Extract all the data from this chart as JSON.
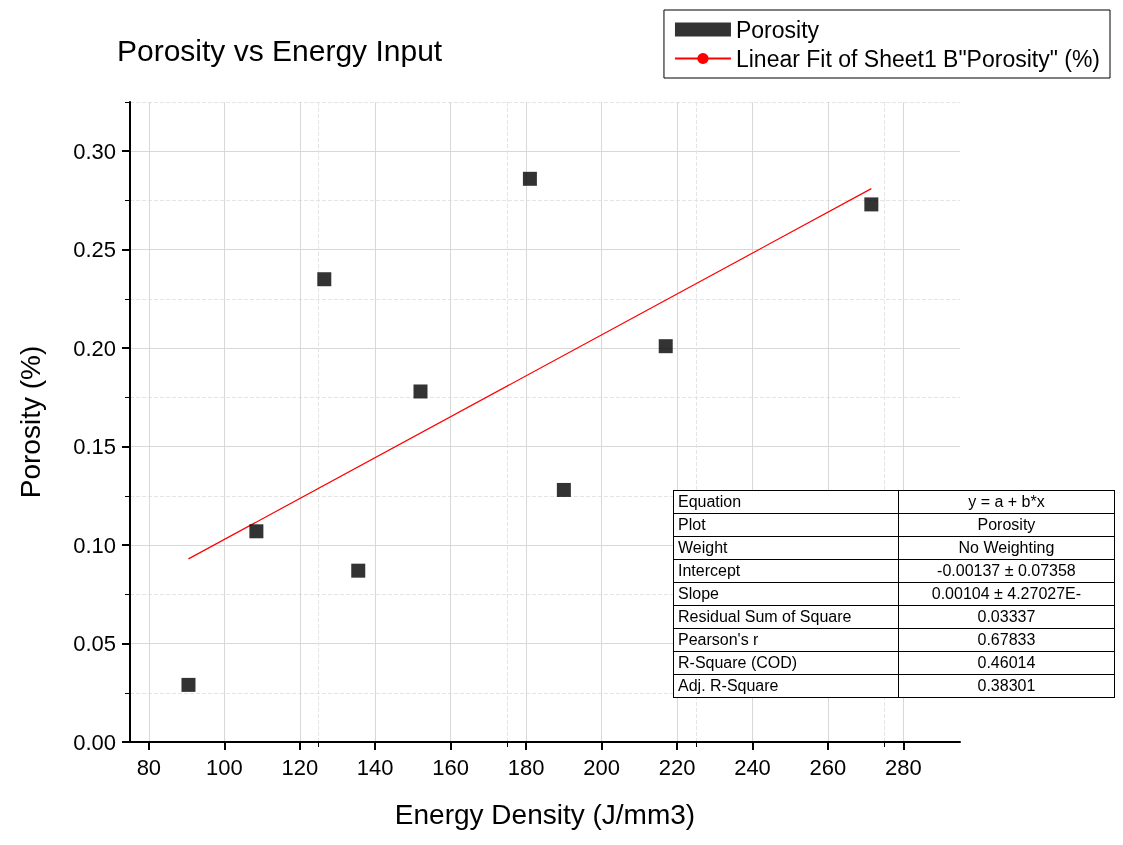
{
  "chart_data": {
    "type": "scatter",
    "title": "Porosity vs Energy Input",
    "xlabel": "Energy Density (J/mm3)",
    "ylabel": "Porosity (%)",
    "x": [
      90.5,
      108.5,
      126.5,
      135.5,
      152,
      181,
      190,
      217,
      271.5
    ],
    "series": [
      {
        "name": "Porosity",
        "color": "#000000",
        "marker": "square",
        "values": [
          0.029,
          0.107,
          0.235,
          0.087,
          0.178,
          0.286,
          0.128,
          0.201,
          0.273
        ]
      },
      {
        "name": "Linear Fit of Sheet1 B\"Porosity\" (%)",
        "type": "line",
        "color": "#ff0000",
        "marker": "none",
        "x": [
          90.5,
          271.5
        ],
        "values": [
          0.093,
          0.281
        ]
      }
    ],
    "xlim": [
      75,
      295
    ],
    "xticks": [
      80,
      100,
      120,
      140,
      160,
      180,
      200,
      220,
      240,
      260,
      280
    ],
    "ylim": [
      0,
      0.325
    ],
    "yticks": [
      {
        "value": 0,
        "label": "0.00"
      },
      {
        "value": 0.05,
        "label": "0.05"
      },
      {
        "value": 0.1,
        "label": "0.10"
      },
      {
        "value": 0.15,
        "label": "0.15"
      },
      {
        "value": 0.2,
        "label": "0.20"
      },
      {
        "value": 0.25,
        "label": "0.25"
      },
      {
        "value": 0.3,
        "label": "0.30"
      }
    ],
    "grid": true,
    "legend": "top right",
    "annotations": [
      "Equation",
      "y = a + b*x",
      "Plot",
      "Porosity",
      "Weight",
      "No Weighting",
      "Intercept",
      "-0.00137 ± 0.07358",
      "Slope",
      "0.00104 ± 4.27027E-",
      "Residual Sum of Square",
      "0.03337",
      "Pearson's r",
      "0.67833",
      "R-Square (COD)",
      "0.46014",
      "Adj. R-Square",
      "0.38301"
    ]
  }
}
